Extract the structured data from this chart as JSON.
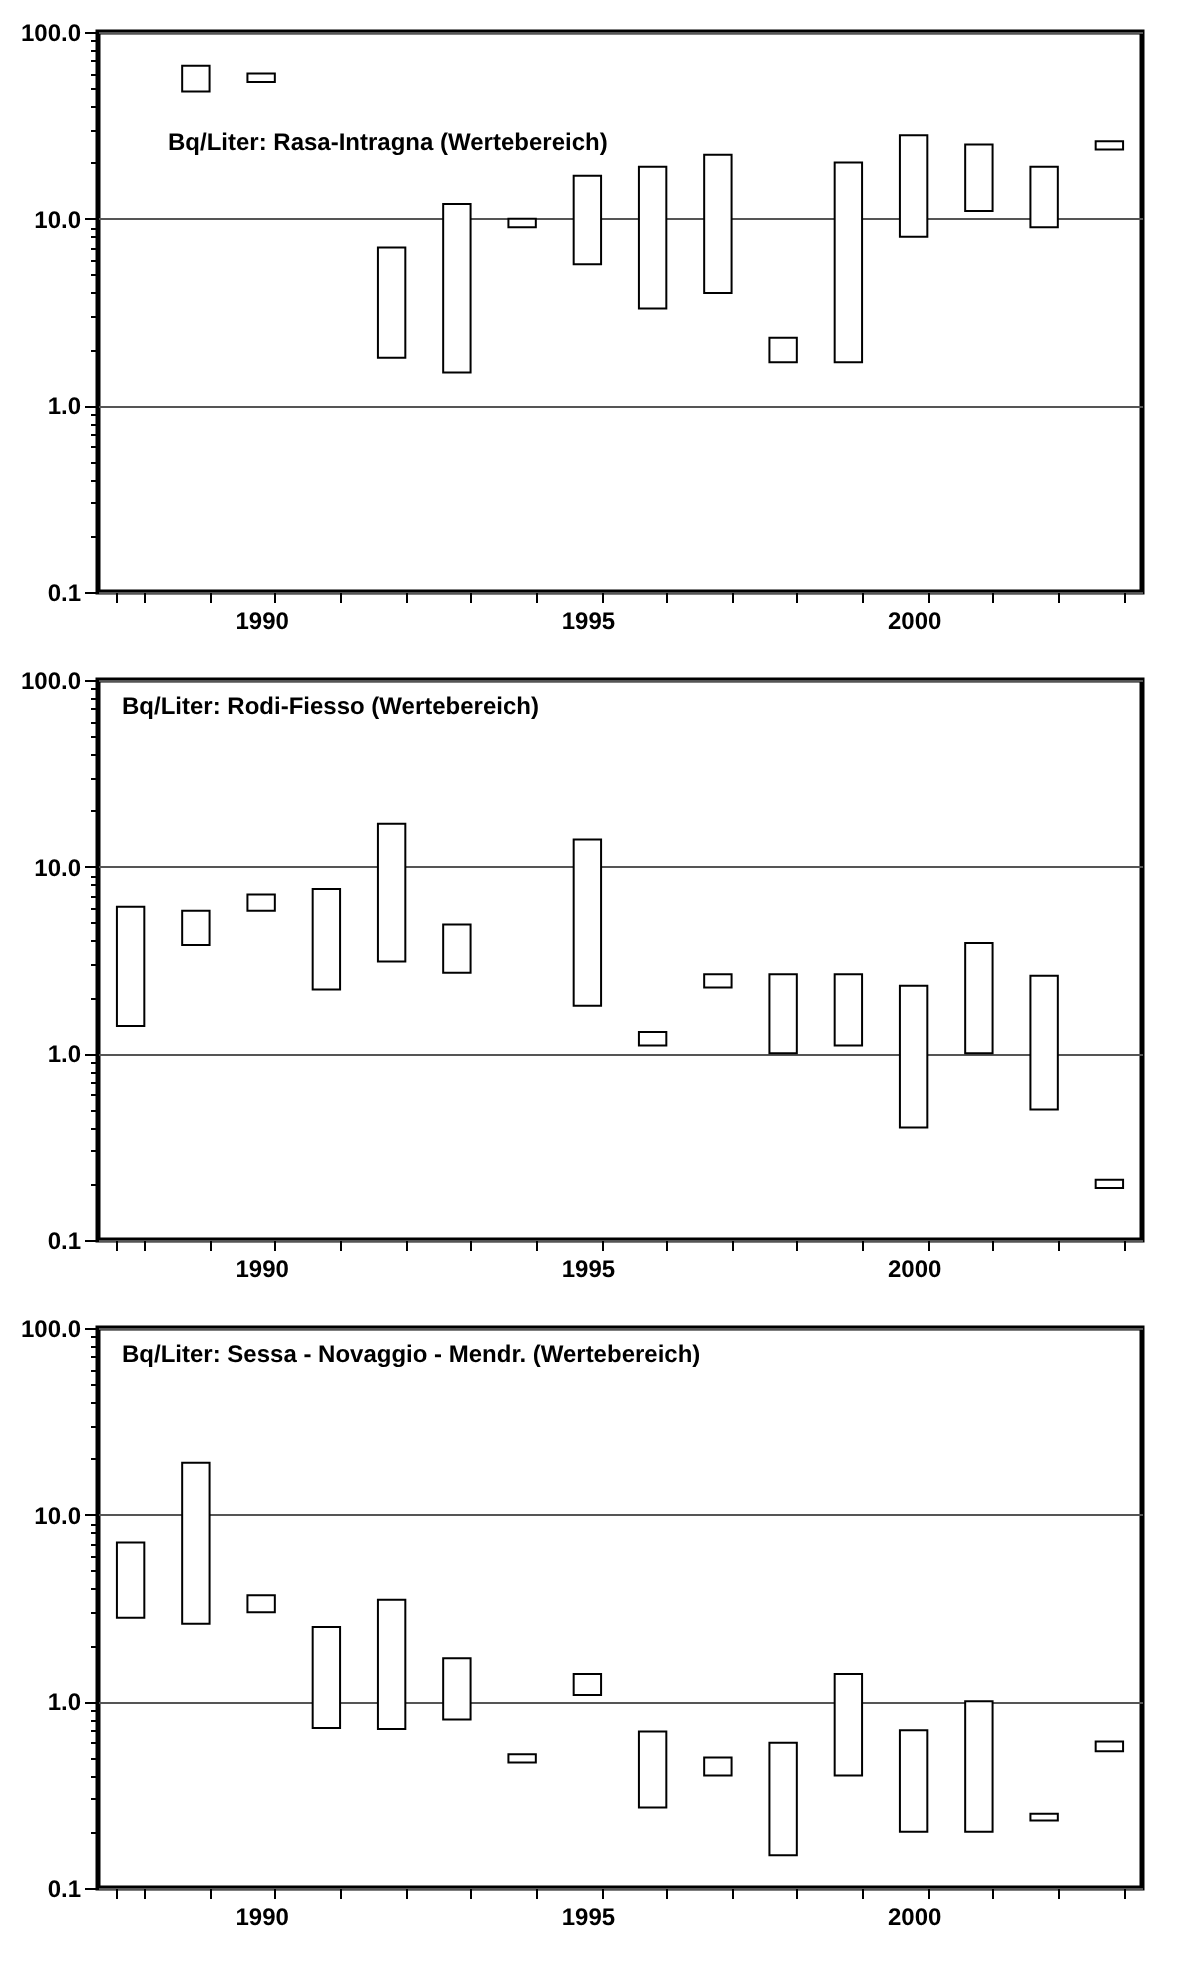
{
  "chart_data": [
    {
      "type": "bar",
      "title": "Bq/Liter: Rasa-Intragna (Wertebereich)",
      "categories": [
        null,
        null,
        "1990",
        null,
        null,
        null,
        null,
        "1995",
        null,
        null,
        null,
        null,
        "2000",
        null,
        null,
        null
      ],
      "base": [
        null,
        48,
        54,
        null,
        1.8,
        1.5,
        9,
        5.7,
        3.3,
        4,
        1.7,
        1.7,
        8,
        11,
        9,
        23.5
      ],
      "values": [
        null,
        18,
        6,
        null,
        5.2,
        10.5,
        1,
        11.3,
        15.7,
        18,
        0.6,
        18.3,
        20,
        14,
        10,
        2.5
      ],
      "color": "#ffffff",
      "log": "y",
      "ylim": [
        0.1,
        100
      ],
      "yticks": [
        {
          "value": 0.1,
          "label": "0.1"
        },
        {
          "value": 0.2,
          "label": null
        },
        {
          "value": 0.3,
          "label": null
        },
        {
          "value": 0.4,
          "label": null
        },
        {
          "value": 0.5,
          "label": null
        },
        {
          "value": 0.6,
          "label": null
        },
        {
          "value": 0.7,
          "label": null
        },
        {
          "value": 0.8,
          "label": null
        },
        {
          "value": 0.9,
          "label": null
        },
        {
          "value": 1,
          "label": "1.0"
        },
        {
          "value": 2,
          "label": null
        },
        {
          "value": 3,
          "label": null
        },
        {
          "value": 4,
          "label": null
        },
        {
          "value": 5,
          "label": null
        },
        {
          "value": 6,
          "label": null
        },
        {
          "value": 7,
          "label": null
        },
        {
          "value": 8,
          "label": null
        },
        {
          "value": 9,
          "label": null
        },
        {
          "value": 10,
          "label": "10.0"
        },
        {
          "value": 20,
          "label": null
        },
        {
          "value": 30,
          "label": null
        },
        {
          "value": 40,
          "label": null
        },
        {
          "value": 50,
          "label": null
        },
        {
          "value": 60,
          "label": null
        },
        {
          "value": 70,
          "label": null
        },
        {
          "value": 80,
          "label": null
        },
        {
          "value": 90,
          "label": null
        },
        {
          "value": 100,
          "label": "100.0"
        }
      ],
      "grid": "y"
    },
    {
      "type": "bar",
      "title": "Bq/Liter: Rodi-Fiesso (Wertebereich)",
      "categories": [
        null,
        null,
        "1990",
        null,
        null,
        null,
        null,
        "1995",
        null,
        null,
        null,
        null,
        "2000",
        null,
        null,
        null
      ],
      "base": [
        1.4,
        3.8,
        5.8,
        2.2,
        3.1,
        2.7,
        null,
        1.8,
        1.1,
        2.25,
        1,
        1.1,
        0.4,
        1,
        0.5,
        0.19
      ],
      "values": [
        4.7,
        2,
        1.3,
        5.4,
        13.9,
        2.2,
        null,
        12.2,
        0.2,
        0.4,
        1.65,
        1.55,
        1.9,
        2.9,
        2.1,
        0.02
      ],
      "color": "#ffffff",
      "log": "y",
      "ylim": [
        0.1,
        100
      ],
      "yticks": [
        {
          "value": 0.1,
          "label": "0.1"
        },
        {
          "value": 0.2,
          "label": null
        },
        {
          "value": 0.3,
          "label": null
        },
        {
          "value": 0.4,
          "label": null
        },
        {
          "value": 0.5,
          "label": null
        },
        {
          "value": 0.6,
          "label": null
        },
        {
          "value": 0.7,
          "label": null
        },
        {
          "value": 0.8,
          "label": null
        },
        {
          "value": 0.9,
          "label": null
        },
        {
          "value": 1,
          "label": "1.0"
        },
        {
          "value": 2,
          "label": null
        },
        {
          "value": 3,
          "label": null
        },
        {
          "value": 4,
          "label": null
        },
        {
          "value": 5,
          "label": null
        },
        {
          "value": 6,
          "label": null
        },
        {
          "value": 7,
          "label": null
        },
        {
          "value": 8,
          "label": null
        },
        {
          "value": 9,
          "label": null
        },
        {
          "value": 10,
          "label": "10.0"
        },
        {
          "value": 20,
          "label": null
        },
        {
          "value": 30,
          "label": null
        },
        {
          "value": 40,
          "label": null
        },
        {
          "value": 50,
          "label": null
        },
        {
          "value": 60,
          "label": null
        },
        {
          "value": 70,
          "label": null
        },
        {
          "value": 80,
          "label": null
        },
        {
          "value": 90,
          "label": null
        },
        {
          "value": 100,
          "label": "100.0"
        }
      ],
      "grid": "y"
    },
    {
      "type": "bar",
      "title": "Bq/Liter: Sessa - Novaggio - Mendr. (Wertebereich)",
      "categories": [
        null,
        null,
        "1990",
        null,
        null,
        null,
        null,
        "1995",
        null,
        null,
        null,
        null,
        "2000",
        null,
        null,
        null
      ],
      "base": [
        2.8,
        2.6,
        3,
        0.72,
        0.71,
        0.8,
        0.47,
        1.08,
        0.27,
        0.4,
        0.15,
        0.4,
        0.2,
        0.2,
        0.23,
        0.54
      ],
      "values": [
        4.3,
        16.4,
        0.7,
        1.78,
        2.79,
        0.9,
        0.05,
        0.32,
        0.42,
        0.1,
        0.45,
        1,
        0.5,
        0.8,
        0.02,
        0.07
      ],
      "color": "#ffffff",
      "log": "y",
      "ylim": [
        0.1,
        100
      ],
      "yticks": [
        {
          "value": 0.1,
          "label": "0.1"
        },
        {
          "value": 0.2,
          "label": null
        },
        {
          "value": 0.3,
          "label": null
        },
        {
          "value": 0.4,
          "label": null
        },
        {
          "value": 0.5,
          "label": null
        },
        {
          "value": 0.6,
          "label": null
        },
        {
          "value": 0.7,
          "label": null
        },
        {
          "value": 0.8,
          "label": null
        },
        {
          "value": 0.9,
          "label": null
        },
        {
          "value": 1,
          "label": "1.0"
        },
        {
          "value": 2,
          "label": null
        },
        {
          "value": 3,
          "label": null
        },
        {
          "value": 4,
          "label": null
        },
        {
          "value": 5,
          "label": null
        },
        {
          "value": 6,
          "label": null
        },
        {
          "value": 7,
          "label": null
        },
        {
          "value": 8,
          "label": null
        },
        {
          "value": 9,
          "label": null
        },
        {
          "value": 10,
          "label": "10.0"
        },
        {
          "value": 20,
          "label": null
        },
        {
          "value": 30,
          "label": null
        },
        {
          "value": 40,
          "label": null
        },
        {
          "value": 50,
          "label": null
        },
        {
          "value": 60,
          "label": null
        },
        {
          "value": 70,
          "label": null
        },
        {
          "value": 80,
          "label": null
        },
        {
          "value": 90,
          "label": null
        },
        {
          "value": 100,
          "label": "100.0"
        }
      ],
      "grid": "y"
    }
  ]
}
